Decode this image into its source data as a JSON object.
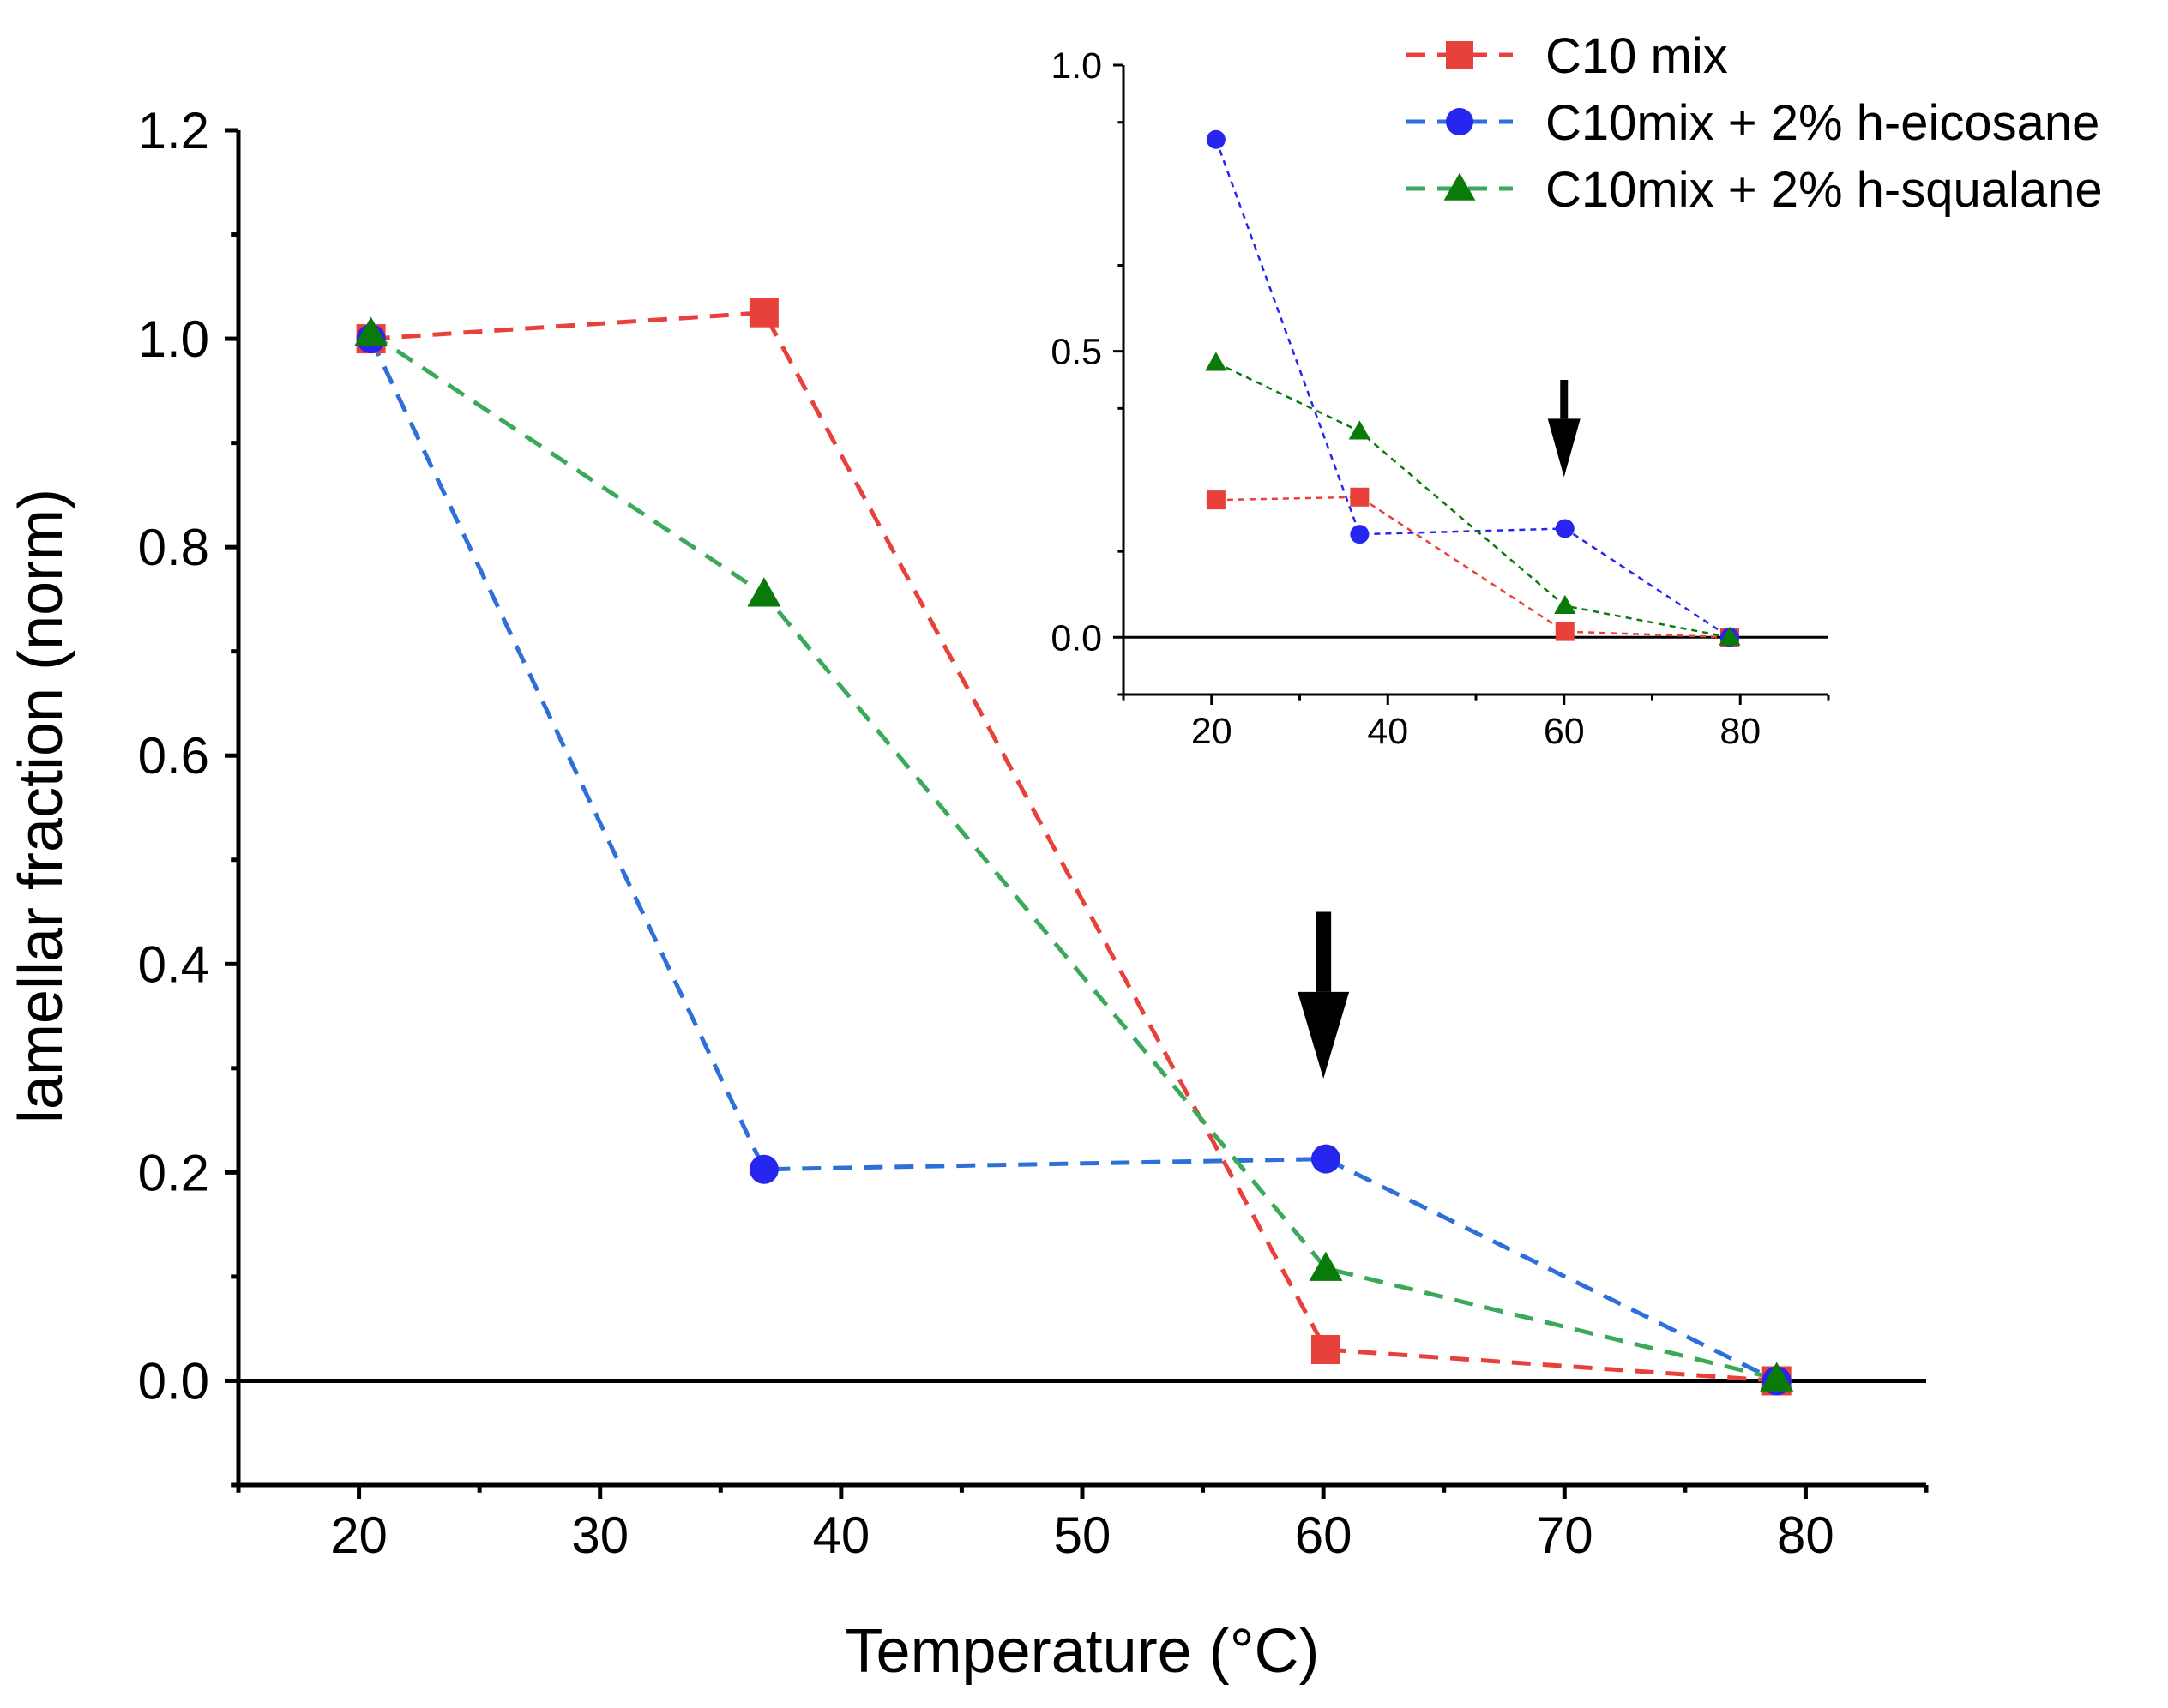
{
  "chart_data": [
    {
      "type": "line",
      "title": "",
      "xlabel": "Temperature (°C)",
      "ylabel": "lamellar fraction (norm)",
      "xlim": [
        15,
        85
      ],
      "ylim": [
        -0.1,
        1.2
      ],
      "xticks": [
        20,
        30,
        40,
        50,
        60,
        70,
        80
      ],
      "yticks": [
        0.0,
        0.2,
        0.4,
        0.6,
        0.8,
        1.0,
        1.2
      ],
      "xtick_labels": [
        "20",
        "30",
        "40",
        "50",
        "60",
        "70",
        "80"
      ],
      "ytick_labels": [
        "0.0",
        "0.2",
        "0.4",
        "0.6",
        "0.8",
        "1.0",
        "1.2"
      ],
      "zero_line": true,
      "grid": false,
      "legend_position": "top-right",
      "annotations": [
        {
          "type": "arrow-down",
          "x": 60,
          "y_from": 0.45,
          "y_to": 0.29
        }
      ],
      "series": [
        {
          "name": "C10 mix",
          "color": "#e8413b",
          "marker": "square",
          "x": [
            20.5,
            36.8,
            60.1,
            78.8
          ],
          "y": [
            1.0,
            1.025,
            0.03,
            0.0
          ]
        },
        {
          "name": "C10mix + 2% h-eicosane",
          "color": "#2f6fd9",
          "marker": "circle",
          "marker_color": "#2626ef",
          "x": [
            20.5,
            36.8,
            60.1,
            78.8
          ],
          "y": [
            1.0,
            0.203,
            0.213,
            0.0
          ]
        },
        {
          "name": "C10mix + 2% h-squalane",
          "color": "#3aaa5a",
          "marker": "triangle",
          "marker_color": "#0a7a0a",
          "x": [
            20.5,
            36.8,
            60.1,
            78.8
          ],
          "y": [
            1.005,
            0.755,
            0.108,
            0.002
          ]
        }
      ]
    },
    {
      "type": "line",
      "title": "",
      "inset": true,
      "xlim": [
        10,
        90
      ],
      "ylim": [
        -0.1,
        1.0
      ],
      "xticks": [
        20,
        40,
        60,
        80
      ],
      "yticks": [
        0.0,
        0.5,
        1.0
      ],
      "xtick_labels": [
        "20",
        "40",
        "60",
        "80"
      ],
      "ytick_labels": [
        "0.0",
        "0.5",
        "1.0"
      ],
      "zero_line": true,
      "grid": false,
      "annotations": [
        {
          "type": "arrow-down",
          "x": 60,
          "y_from": 0.45,
          "y_to": 0.28
        }
      ],
      "series": [
        {
          "name": "C10 mix",
          "color": "#e8413b",
          "marker": "square",
          "x": [
            20.5,
            36.8,
            60.1,
            78.8
          ],
          "y": [
            0.24,
            0.245,
            0.01,
            0.0
          ]
        },
        {
          "name": "C10mix + 2% h-eicosane",
          "color": "#2626ef",
          "marker": "circle",
          "x": [
            20.5,
            36.8,
            60.1,
            78.8
          ],
          "y": [
            0.87,
            0.18,
            0.19,
            0.0
          ]
        },
        {
          "name": "C10mix + 2% h-squalane",
          "color": "#0a7a0a",
          "marker": "triangle",
          "x": [
            20.5,
            36.8,
            60.1,
            78.8
          ],
          "y": [
            0.48,
            0.36,
            0.055,
            0.0
          ]
        }
      ]
    }
  ]
}
